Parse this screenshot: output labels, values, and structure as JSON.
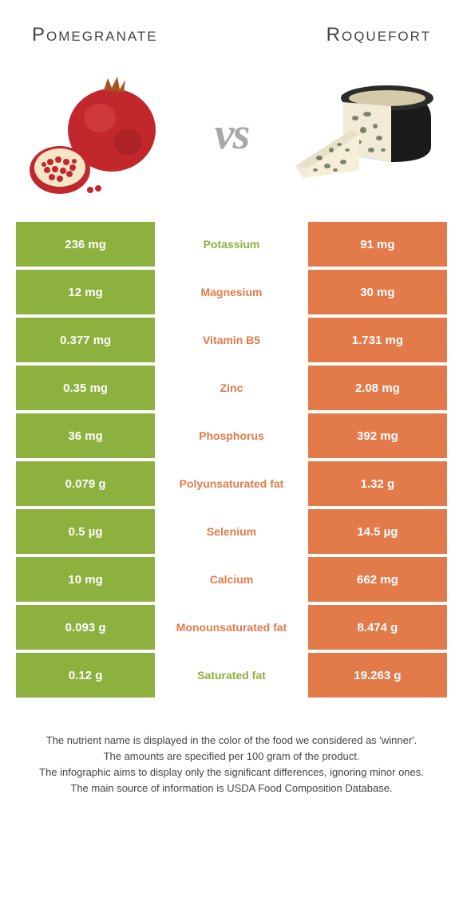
{
  "header": {
    "left_title": "Pomegranate",
    "right_title": "Roquefort"
  },
  "vs_label": "vs",
  "colors": {
    "left_bar": "#8cb13e",
    "right_bar": "#e27a4a",
    "mid_left_text": "#8cb13e",
    "mid_right_text": "#e27a4a"
  },
  "rows": [
    {
      "left": "236 mg",
      "label": "Potassium",
      "right": "91 mg",
      "winner": "left"
    },
    {
      "left": "12 mg",
      "label": "Magnesium",
      "right": "30 mg",
      "winner": "right"
    },
    {
      "left": "0.377 mg",
      "label": "Vitamin B5",
      "right": "1.731 mg",
      "winner": "right"
    },
    {
      "left": "0.35 mg",
      "label": "Zinc",
      "right": "2.08 mg",
      "winner": "right"
    },
    {
      "left": "36 mg",
      "label": "Phosphorus",
      "right": "392 mg",
      "winner": "right"
    },
    {
      "left": "0.079 g",
      "label": "Polyunsaturated fat",
      "right": "1.32 g",
      "winner": "right"
    },
    {
      "left": "0.5 µg",
      "label": "Selenium",
      "right": "14.5 µg",
      "winner": "right"
    },
    {
      "left": "10 mg",
      "label": "Calcium",
      "right": "662 mg",
      "winner": "right"
    },
    {
      "left": "0.093 g",
      "label": "Monounsaturated fat",
      "right": "8.474 g",
      "winner": "right"
    },
    {
      "left": "0.12 g",
      "label": "Saturated fat",
      "right": "19.263 g",
      "winner": "left"
    }
  ],
  "footnotes": {
    "line1": "The nutrient name is displayed in the color of the food we considered as 'winner'.",
    "line2": "The amounts are specified per 100 gram of the product.",
    "line3": "The infographic aims to display only the significant differences, ignoring minor ones.",
    "line4": "The main source of information is USDA Food Composition Database."
  }
}
